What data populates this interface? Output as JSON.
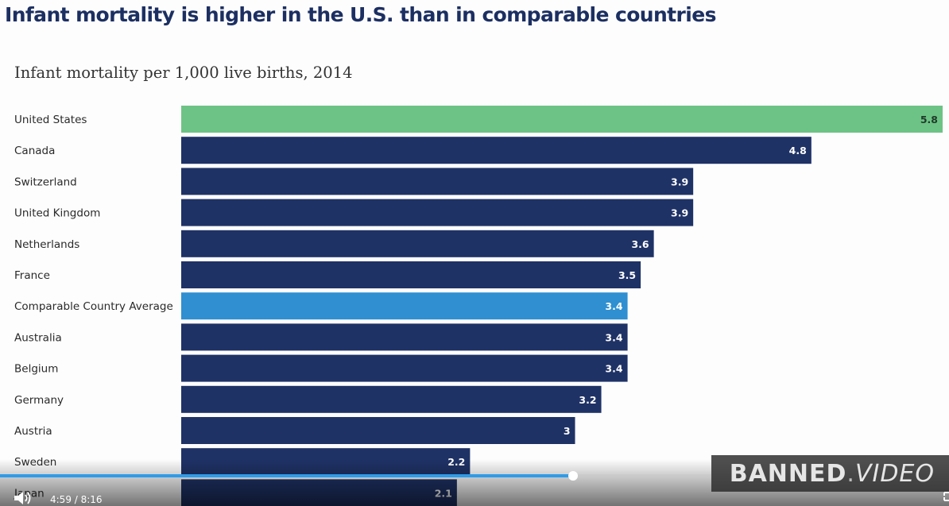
{
  "page": {
    "title": "Infant mortality is higher in the U.S. than in comparable countries",
    "subtitle": "Infant mortality per 1,000 live births, 2014"
  },
  "chart_data": {
    "type": "bar",
    "orientation": "horizontal",
    "title": "Infant mortality is higher in the U.S. than in comparable countries",
    "subtitle": "Infant mortality per 1,000 live births, 2014",
    "categories": [
      "United States",
      "Canada",
      "Switzerland",
      "United Kingdom",
      "Netherlands",
      "France",
      "Comparable Country Average",
      "Australia",
      "Belgium",
      "Germany",
      "Austria",
      "Sweden",
      "Japan"
    ],
    "values": [
      5.8,
      4.8,
      3.9,
      3.9,
      3.6,
      3.5,
      3.4,
      3.4,
      3.4,
      3.2,
      3,
      2.2,
      2.1
    ],
    "value_labels": [
      "5.8",
      "4.8",
      "3.9",
      "3.9",
      "3.6",
      "3.5",
      "3.4",
      "3.4",
      "3.4",
      "3.2",
      "3",
      "2.2",
      "2.1"
    ],
    "xlim": [
      0,
      5.8
    ],
    "grid": false,
    "colors": {
      "default": "#1f3266",
      "United States": "#6dc385",
      "Comparable Country Average": "#2f8fd1"
    }
  },
  "player": {
    "time_display": "4:59 / 8:16",
    "progress_fraction": 0.604,
    "accent_color": "#2f9ce8"
  },
  "watermark": {
    "brand": "BANNED",
    "separator": ".",
    "suffix": "VIDEO"
  },
  "icons": {
    "volume": "volume-icon",
    "fullscreen": "fullscreen-icon"
  }
}
